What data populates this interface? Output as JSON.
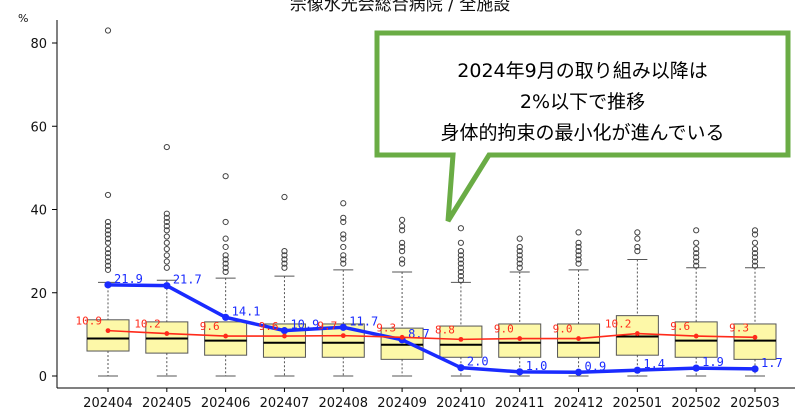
{
  "chart_data": {
    "type": "box",
    "title": "宗像水光会総合病院 / 全施設",
    "ylabel": "%",
    "ylim": [
      -2,
      85
    ],
    "yticks": [
      0,
      20,
      40,
      60,
      80
    ],
    "categories": [
      "202404",
      "202405",
      "202406",
      "202407",
      "202408",
      "202409",
      "202410",
      "202411",
      "202412",
      "202501",
      "202502",
      "202503"
    ],
    "boxes": [
      {
        "q1": 6.0,
        "median": 9.0,
        "q3": 13.5,
        "whisker_low": 0,
        "whisker_high": 22.5,
        "outliers": [
          25.5,
          26.5,
          27.5,
          28.5,
          29.5,
          30.5,
          32,
          33,
          34,
          35,
          36,
          37,
          43.5,
          83
        ]
      },
      {
        "q1": 5.5,
        "median": 9.0,
        "q3": 13.0,
        "whisker_low": 0,
        "whisker_high": 23,
        "outliers": [
          26,
          27.5,
          29,
          30.5,
          32,
          33.5,
          35,
          36,
          37,
          38,
          39,
          55
        ]
      },
      {
        "q1": 5.0,
        "median": 8.5,
        "q3": 13.0,
        "whisker_low": 0,
        "whisker_high": 23.5,
        "outliers": [
          25,
          26,
          27,
          28,
          29,
          31,
          33,
          37,
          48
        ]
      },
      {
        "q1": 4.5,
        "median": 8.0,
        "q3": 12.5,
        "whisker_low": 0,
        "whisker_high": 24,
        "outliers": [
          26,
          27,
          28,
          29,
          30,
          43
        ]
      },
      {
        "q1": 4.5,
        "median": 8.0,
        "q3": 12.5,
        "whisker_low": 0,
        "whisker_high": 25.5,
        "outliers": [
          27,
          28,
          29,
          31,
          33,
          34,
          37,
          38,
          41.5
        ]
      },
      {
        "q1": 4.0,
        "median": 7.5,
        "q3": 11.5,
        "whisker_low": 0,
        "whisker_high": 25,
        "outliers": [
          27,
          28,
          30,
          31,
          32,
          35,
          36,
          37.5
        ]
      },
      {
        "q1": 4.5,
        "median": 7.5,
        "q3": 12.0,
        "whisker_low": 0,
        "whisker_high": 22.5,
        "outliers": [
          23,
          24,
          25,
          26,
          27,
          28,
          29,
          30,
          32,
          35.5
        ]
      },
      {
        "q1": 4.5,
        "median": 8.0,
        "q3": 12.5,
        "whisker_low": 0,
        "whisker_high": 25,
        "outliers": [
          26,
          27,
          28,
          29,
          30,
          31,
          33
        ]
      },
      {
        "q1": 4.5,
        "median": 8.0,
        "q3": 12.5,
        "whisker_low": 0,
        "whisker_high": 25.5,
        "outliers": [
          27,
          28,
          29,
          30,
          31,
          32,
          34.5
        ]
      },
      {
        "q1": 5.0,
        "median": 9.5,
        "q3": 14.5,
        "whisker_low": 0,
        "whisker_high": 28,
        "outliers": [
          30,
          31,
          33,
          34.5
        ]
      },
      {
        "q1": 4.5,
        "median": 8.5,
        "q3": 13.0,
        "whisker_low": 0,
        "whisker_high": 26,
        "outliers": [
          26.5,
          27.5,
          28.5,
          29.5,
          30.5,
          32,
          35
        ]
      },
      {
        "q1": 4.0,
        "median": 8.5,
        "q3": 12.5,
        "whisker_low": 0,
        "whisker_high": 26,
        "outliers": [
          26.5,
          27.5,
          28.5,
          29.5,
          30.5,
          32,
          34,
          35
        ]
      }
    ],
    "series": [
      {
        "color": "#1a2bff",
        "values": [
          21.9,
          21.7,
          14.1,
          10.9,
          11.7,
          8.7,
          2.0,
          1.0,
          0.9,
          1.4,
          1.9,
          1.7
        ],
        "labels": [
          "21.9",
          "21.7",
          "14.1",
          "10.9",
          "11.7",
          "8.7",
          "2.0",
          "1.0",
          "0.9",
          "1.4",
          "1.9",
          "1.7"
        ]
      },
      {
        "color": "#ff2a1a",
        "values": [
          10.9,
          10.2,
          9.6,
          9.6,
          9.7,
          9.3,
          8.8,
          9.0,
          9.0,
          10.2,
          9.6,
          9.3
        ],
        "labels": [
          "10.9",
          "10.2",
          "9.6",
          "9.6",
          "9.7",
          "9.3",
          "8.8",
          "9.0",
          "9.0",
          "10.2",
          "9.6",
          "9.3"
        ]
      }
    ],
    "annotation": {
      "lines": [
        "2024年9月の取り組み以降は",
        "2%以下で推移",
        "身体的拘束の最小化が進んでいる"
      ],
      "border_color": "#6aac45"
    },
    "colors": {
      "box_fill": "#fdf8a8",
      "box_stroke": "#555555",
      "whisker": "#555555"
    }
  }
}
